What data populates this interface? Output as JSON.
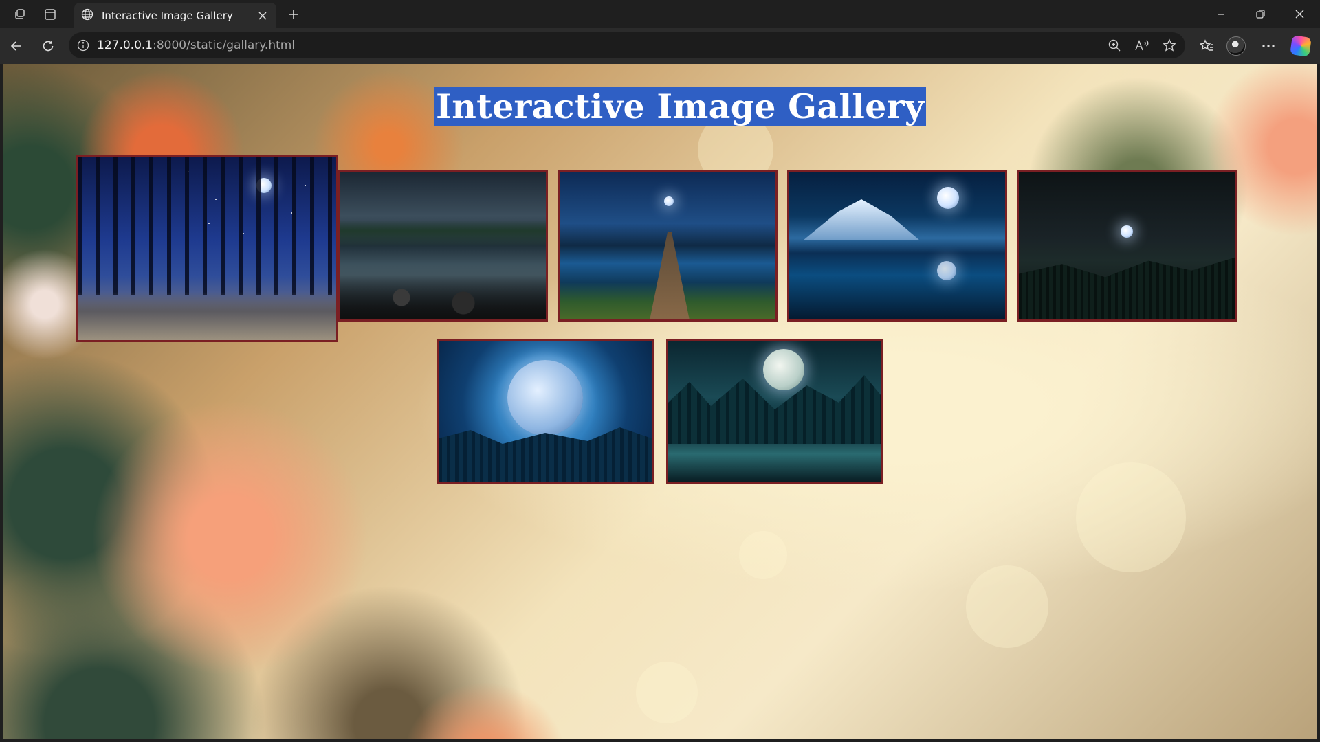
{
  "browser": {
    "tab": {
      "title": "Interactive Image Gallery"
    },
    "address": {
      "host": "127.0.0.1",
      "path": ":8000/static/gallary.html"
    }
  },
  "page": {
    "title": "Interactive Image Gallery",
    "gallery": [
      {
        "name": "gallery-image-starry-forest",
        "scene": "starry night forest path"
      },
      {
        "name": "gallery-image-mountain-lake",
        "scene": "moonlit mountain lake with rocks"
      },
      {
        "name": "gallery-image-lake-pier",
        "scene": "wooden pier on lake under moon"
      },
      {
        "name": "gallery-image-snowy-mountain-moon",
        "scene": "snowy mountain with moon reflection"
      },
      {
        "name": "gallery-image-dark-forest-moon",
        "scene": "dark forest hills with small moon"
      },
      {
        "name": "gallery-image-giant-moon-forest",
        "scene": "giant moon behind forest"
      },
      {
        "name": "gallery-image-moonlit-pond",
        "scene": "moonlit pine forest pond"
      }
    ]
  },
  "colors": {
    "title_highlight": "#2f5fc4",
    "thumb_border": "#7a1f23",
    "browser_chrome": "#2b2b2b"
  }
}
